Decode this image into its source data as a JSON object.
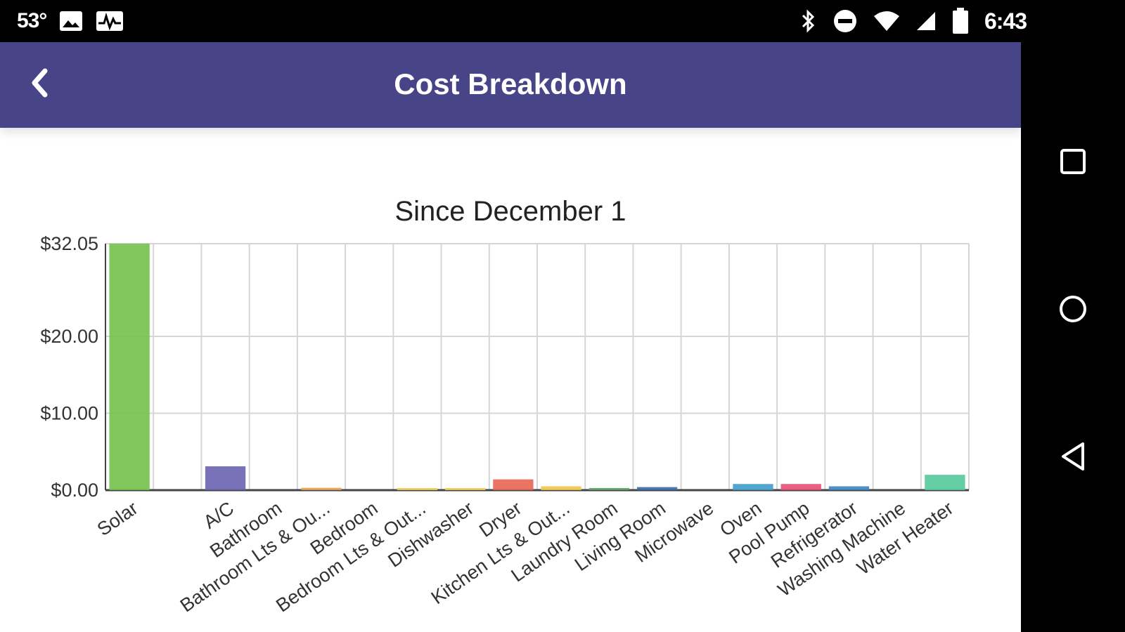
{
  "status_bar": {
    "temperature": "53°",
    "time": "6:43",
    "icons": [
      "image-icon",
      "activity-icon",
      "bluetooth-icon",
      "do-not-disturb-icon",
      "wifi-icon",
      "cellular-signal-icon",
      "battery-icon"
    ]
  },
  "app_bar": {
    "title": "Cost Breakdown",
    "back_icon": "chevron-left-icon",
    "background_color": "#474488"
  },
  "nav_bar": {
    "buttons": [
      "recents-icon",
      "home-icon",
      "back-triangle-icon"
    ]
  },
  "chart_data": {
    "type": "bar",
    "title": "Since December 1",
    "xlabel": "",
    "ylabel": "",
    "ylim": [
      0,
      32.05
    ],
    "y_ticks": [
      {
        "value": 0,
        "label": "$0.00"
      },
      {
        "value": 10,
        "label": "$10.00"
      },
      {
        "value": 20,
        "label": "$20.00"
      },
      {
        "value": 32.05,
        "label": "$32.05"
      }
    ],
    "grid": true,
    "legend": "none",
    "categories": [
      "Solar",
      "",
      "A/C",
      "Bathroom",
      "Bathroom Lts & Ou...",
      "Bedroom",
      "Bedroom Lts & Out...",
      "Dishwasher",
      "Dryer",
      "Kitchen Lts & Out...",
      "Laundry Room",
      "Living Room",
      "Microwave",
      "Oven",
      "Pool Pump",
      "Refrigerator",
      "Washing Machine",
      "Water Heater"
    ],
    "values": [
      32.05,
      0,
      3.1,
      0,
      0.3,
      0,
      0.2,
      0.2,
      1.4,
      0.5,
      0.2,
      0.4,
      0,
      0.8,
      0.8,
      0.5,
      0,
      2.0
    ],
    "colors": [
      "#74c04c",
      "#cccccc",
      "#6a63b0",
      "#cccccc",
      "#e9a24a",
      "#cccccc",
      "#f0cf5a",
      "#f0cf5a",
      "#e96453",
      "#f0c64d",
      "#5fa262",
      "#3e6aa8",
      "#cccccc",
      "#3f9ccd",
      "#e84f77",
      "#3e84c0",
      "#cccccc",
      "#55c99a"
    ]
  }
}
